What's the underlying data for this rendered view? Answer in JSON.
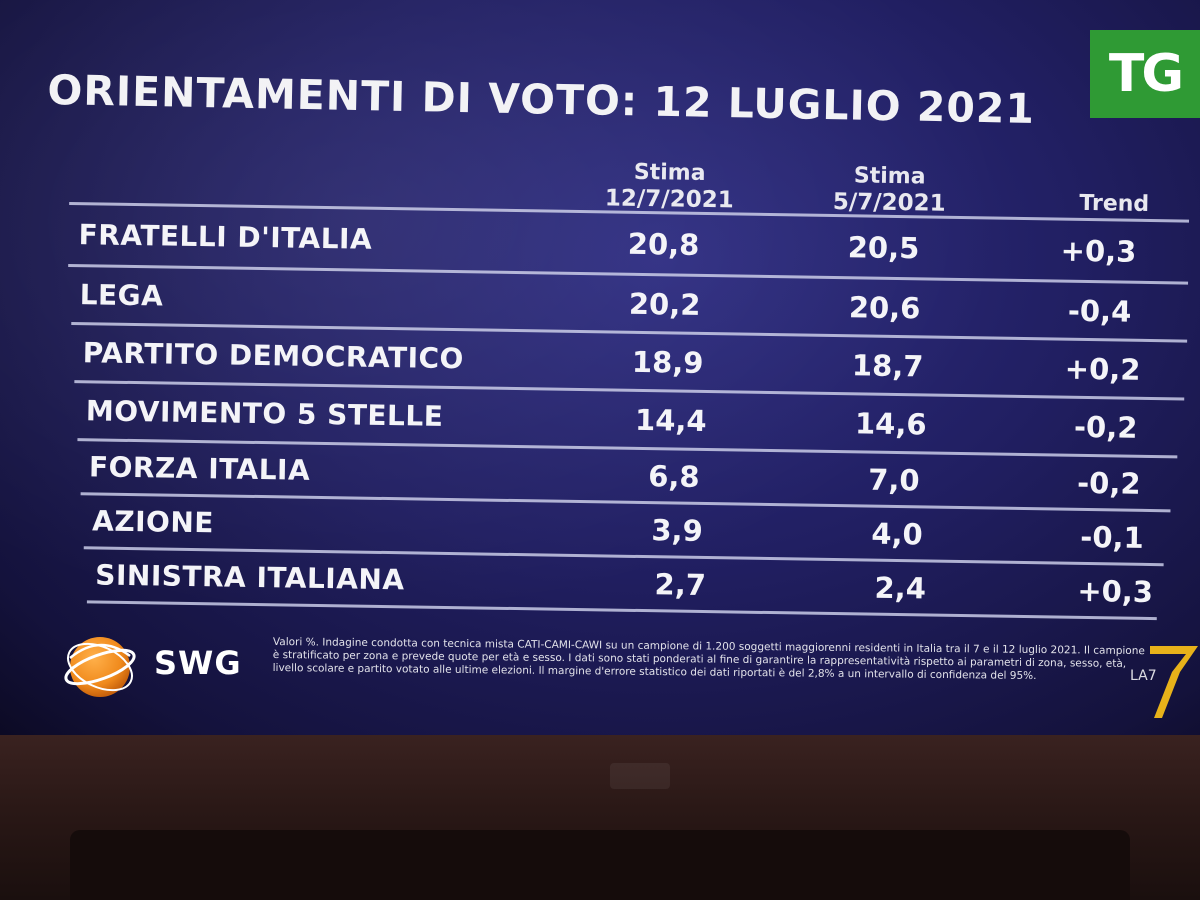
{
  "title": "ORIENTAMENTI DI VOTO: 12 LUGLIO 2021",
  "logo_tg": "TG",
  "columns": {
    "c1_line1": "Stima",
    "c1_line2": "12/7/2021",
    "c2_line1": "Stima",
    "c2_line2": "5/7/2021",
    "c3": "Trend"
  },
  "rows": [
    {
      "party": "FRATELLI D'ITALIA",
      "v1": "20,8",
      "v2": "20,5",
      "trend": "+0,3"
    },
    {
      "party": "LEGA",
      "v1": "20,2",
      "v2": "20,6",
      "trend": "-0,4"
    },
    {
      "party": "PARTITO DEMOCRATICO",
      "v1": "18,9",
      "v2": "18,7",
      "trend": "+0,2"
    },
    {
      "party": "MOVIMENTO 5 STELLE",
      "v1": "14,4",
      "v2": "14,6",
      "trend": "-0,2"
    },
    {
      "party": "FORZA ITALIA",
      "v1": "6,8",
      "v2": "7,0",
      "trend": "-0,2"
    },
    {
      "party": "AZIONE",
      "v1": "3,9",
      "v2": "4,0",
      "trend": "-0,1"
    },
    {
      "party": "SINISTRA ITALIANA",
      "v1": "2,7",
      "v2": "2,4",
      "trend": "+0,3"
    }
  ],
  "footer": {
    "logo_swg": "SWG",
    "note": "Valori %. Indagine condotta con tecnica mista CATI-CAMI-CAWI su un campione di 1.200 soggetti maggiorenni residenti in Italia tra il 7 e il 12 luglio 2021. Il campione è stratificato per zona e prevede quote per età e sesso. I dati sono stati ponderati al fine di garantire la rappresentatività rispetto ai parametri di zona, sesso, età, livello scolare e partito votato alle ultime elezioni. Il margine d'errore statistico dei dati riportati è del 2,8% a un intervallo di confidenza del 95%.",
    "logo_la7": "LA7"
  },
  "colors": {
    "screen_bg": "#211f62",
    "tg_green": "#2f9a34",
    "swg_orange": "#f08a1c",
    "la7_gold": "#e8b21a",
    "text": "#f4f4f8"
  }
}
